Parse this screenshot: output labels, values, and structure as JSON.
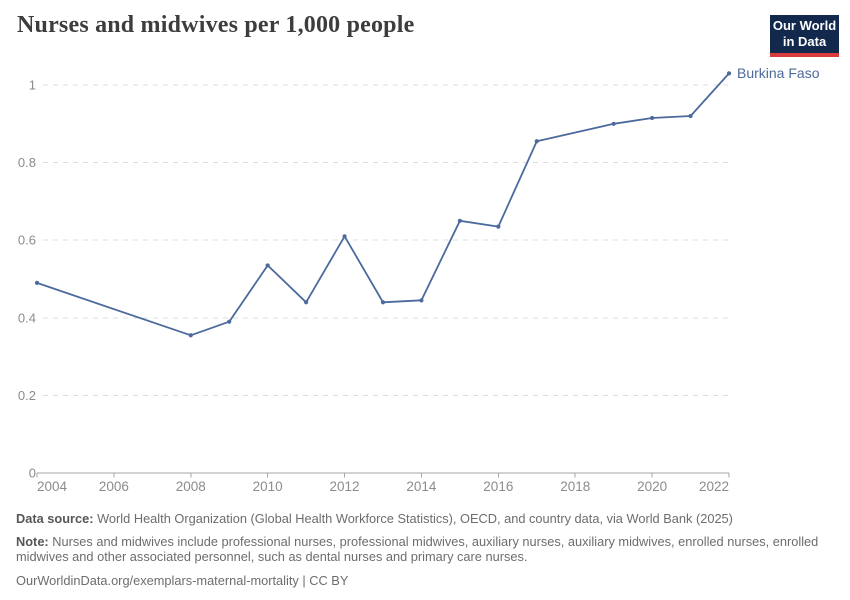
{
  "header": {
    "title": "Nurses and midwives per 1,000 people",
    "logo": {
      "line1": "Our World",
      "line2": "in Data",
      "bg_color": "#12294d",
      "accent_color": "#d93b3b"
    }
  },
  "chart_data": {
    "type": "line",
    "title": "Nurses and midwives per 1,000 people",
    "xlabel": "",
    "ylabel": "",
    "xlim": [
      2004,
      2022
    ],
    "ylim": [
      0,
      1.03
    ],
    "x_ticks": [
      2004,
      2006,
      2008,
      2010,
      2012,
      2014,
      2016,
      2018,
      2020,
      2022
    ],
    "y_ticks": [
      0,
      0.2,
      0.4,
      0.6,
      0.8,
      1
    ],
    "grid": "horizontal-dashed",
    "legend_position": "end-of-line-label",
    "series": [
      {
        "name": "Burkina Faso",
        "color": "#4C6A9C",
        "points": [
          [
            2004,
            0.49
          ],
          [
            2008,
            0.355
          ],
          [
            2009,
            0.39
          ],
          [
            2010,
            0.535
          ],
          [
            2011,
            0.44
          ],
          [
            2012,
            0.61
          ],
          [
            2013,
            0.44
          ],
          [
            2014,
            0.445
          ],
          [
            2015,
            0.65
          ],
          [
            2016,
            0.635
          ],
          [
            2017,
            0.855
          ],
          [
            2019,
            0.9
          ],
          [
            2020,
            0.915
          ],
          [
            2021,
            0.92
          ],
          [
            2022,
            1.03
          ]
        ]
      }
    ],
    "style": {
      "gridline_color": "#dcdcdc",
      "axis_color": "#a5a5a5",
      "tick_label_color": "#8c8c8c"
    }
  },
  "footer": {
    "datasource_label": "Data source:",
    "datasource_text": " World Health Organization (Global Health Workforce Statistics), OECD, and country data, via World Bank (2025)",
    "note_label": "Note:",
    "note_text": " Nurses and midwives include professional nurses, professional midwives, auxiliary nurses, auxiliary midwives, enrolled nurses, enrolled midwives and other associated personnel, such as dental nurses and primary care nurses.",
    "url": "OurWorldinData.org/exemplars-maternal-mortality",
    "license": " | CC BY"
  }
}
